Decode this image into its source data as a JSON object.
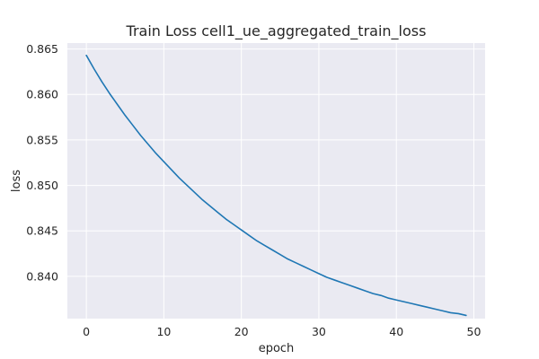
{
  "chart_data": {
    "type": "line",
    "title": "Train Loss cell1_ue_aggregated_train_loss",
    "xlabel": "epoch",
    "ylabel": "loss",
    "xlim": [
      -2.45,
      51.45
    ],
    "ylim": [
      0.83535,
      0.86565
    ],
    "xticks": [
      0,
      10,
      20,
      30,
      40,
      50
    ],
    "yticks": [
      0.84,
      0.845,
      0.85,
      0.855,
      0.86,
      0.865
    ],
    "xtick_labels": [
      "0",
      "10",
      "20",
      "30",
      "40",
      "50"
    ],
    "ytick_labels": [
      "0.840",
      "0.845",
      "0.850",
      "0.855",
      "0.860",
      "0.865"
    ],
    "grid": true,
    "legend": "none",
    "style": {
      "background": "#eaeaf2",
      "grid_color": "#ffffff",
      "line_color": "#1f77b4",
      "text_color": "#262626"
    },
    "series": [
      {
        "x": [
          0,
          1,
          2,
          3,
          4,
          5,
          6,
          7,
          8,
          9,
          10,
          11,
          12,
          13,
          14,
          15,
          16,
          17,
          18,
          19,
          20,
          21,
          22,
          23,
          24,
          25,
          26,
          27,
          28,
          29,
          30,
          31,
          32,
          33,
          34,
          35,
          36,
          37,
          38,
          39,
          40,
          41,
          42,
          43,
          44,
          45,
          46,
          47,
          48,
          49
        ],
        "values": [
          0.8643,
          0.8628,
          0.8614,
          0.8601,
          0.8589,
          0.8577,
          0.8566,
          0.8555,
          0.8545,
          0.8535,
          0.8526,
          0.8517,
          0.8508,
          0.85,
          0.8492,
          0.8484,
          0.8477,
          0.847,
          0.8463,
          0.8457,
          0.8451,
          0.8445,
          0.8439,
          0.8434,
          0.8429,
          0.8424,
          0.8419,
          0.8415,
          0.8411,
          0.8407,
          0.8403,
          0.8399,
          0.8396,
          0.8393,
          0.839,
          0.8387,
          0.8384,
          0.8381,
          0.8379,
          0.8376,
          0.8374,
          0.8372,
          0.837,
          0.8368,
          0.8366,
          0.8364,
          0.8362,
          0.836,
          0.8359,
          0.8357
        ]
      }
    ]
  }
}
